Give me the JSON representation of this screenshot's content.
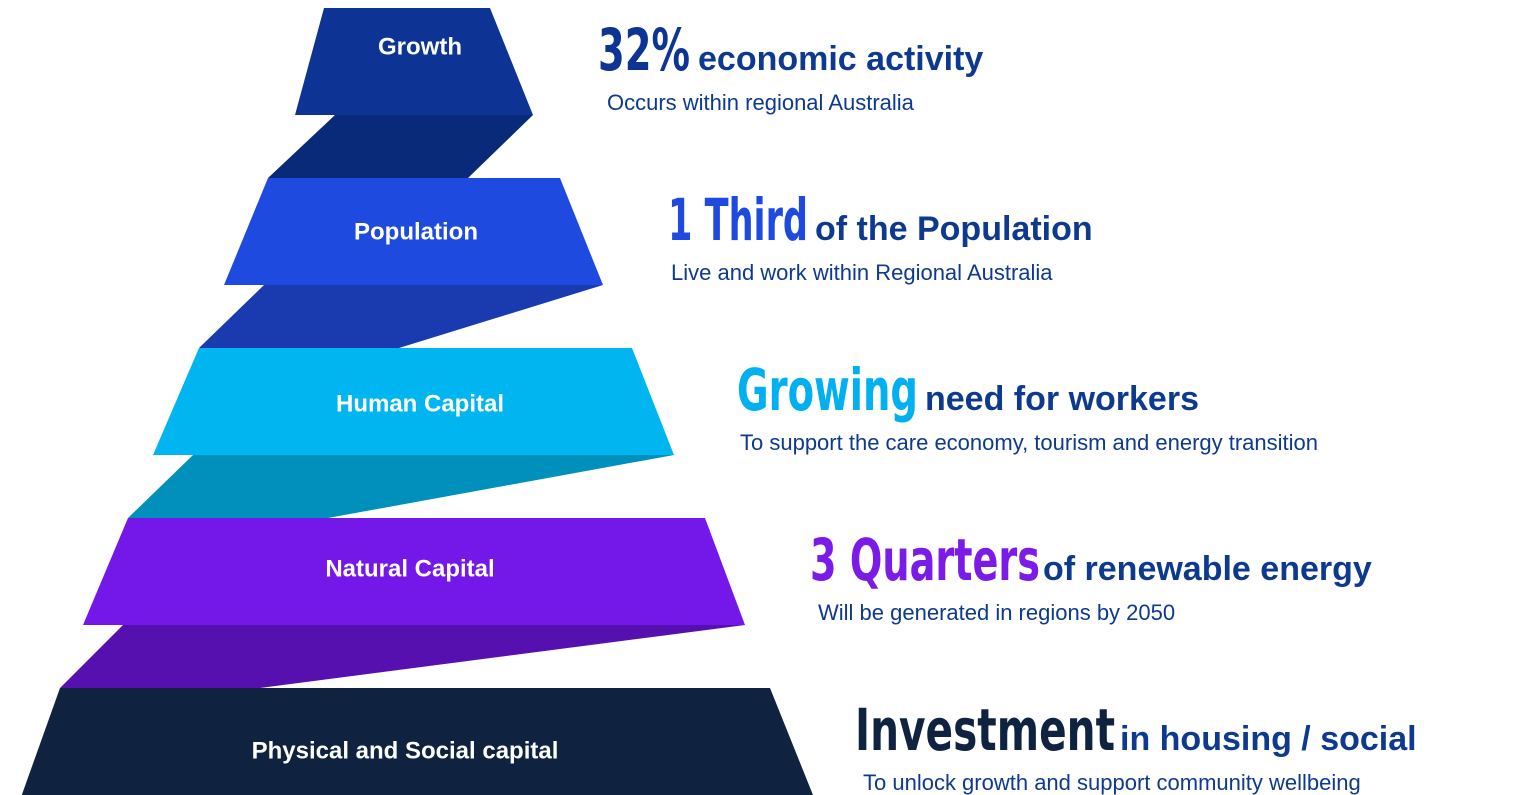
{
  "levels": [
    {
      "label": "Growth",
      "headline": "32%",
      "title": "economic activity",
      "description": "Occurs within regional Australia"
    },
    {
      "label": "Population",
      "headline": "1 Third",
      "title": "of the Population",
      "description": "Live and work within Regional Australia"
    },
    {
      "label": "Human Capital",
      "headline": "Growing",
      "title": "need for workers",
      "description": "To support the care economy, tourism and energy transition"
    },
    {
      "label": "Natural Capital",
      "headline": "3 Quarters",
      "title": "of renewable energy",
      "description": "Will be generated in regions by 2050"
    },
    {
      "label": "Physical and Social capital",
      "headline": "Investment",
      "title": "in housing / social",
      "description": "To unlock growth and support community wellbeing"
    }
  ]
}
